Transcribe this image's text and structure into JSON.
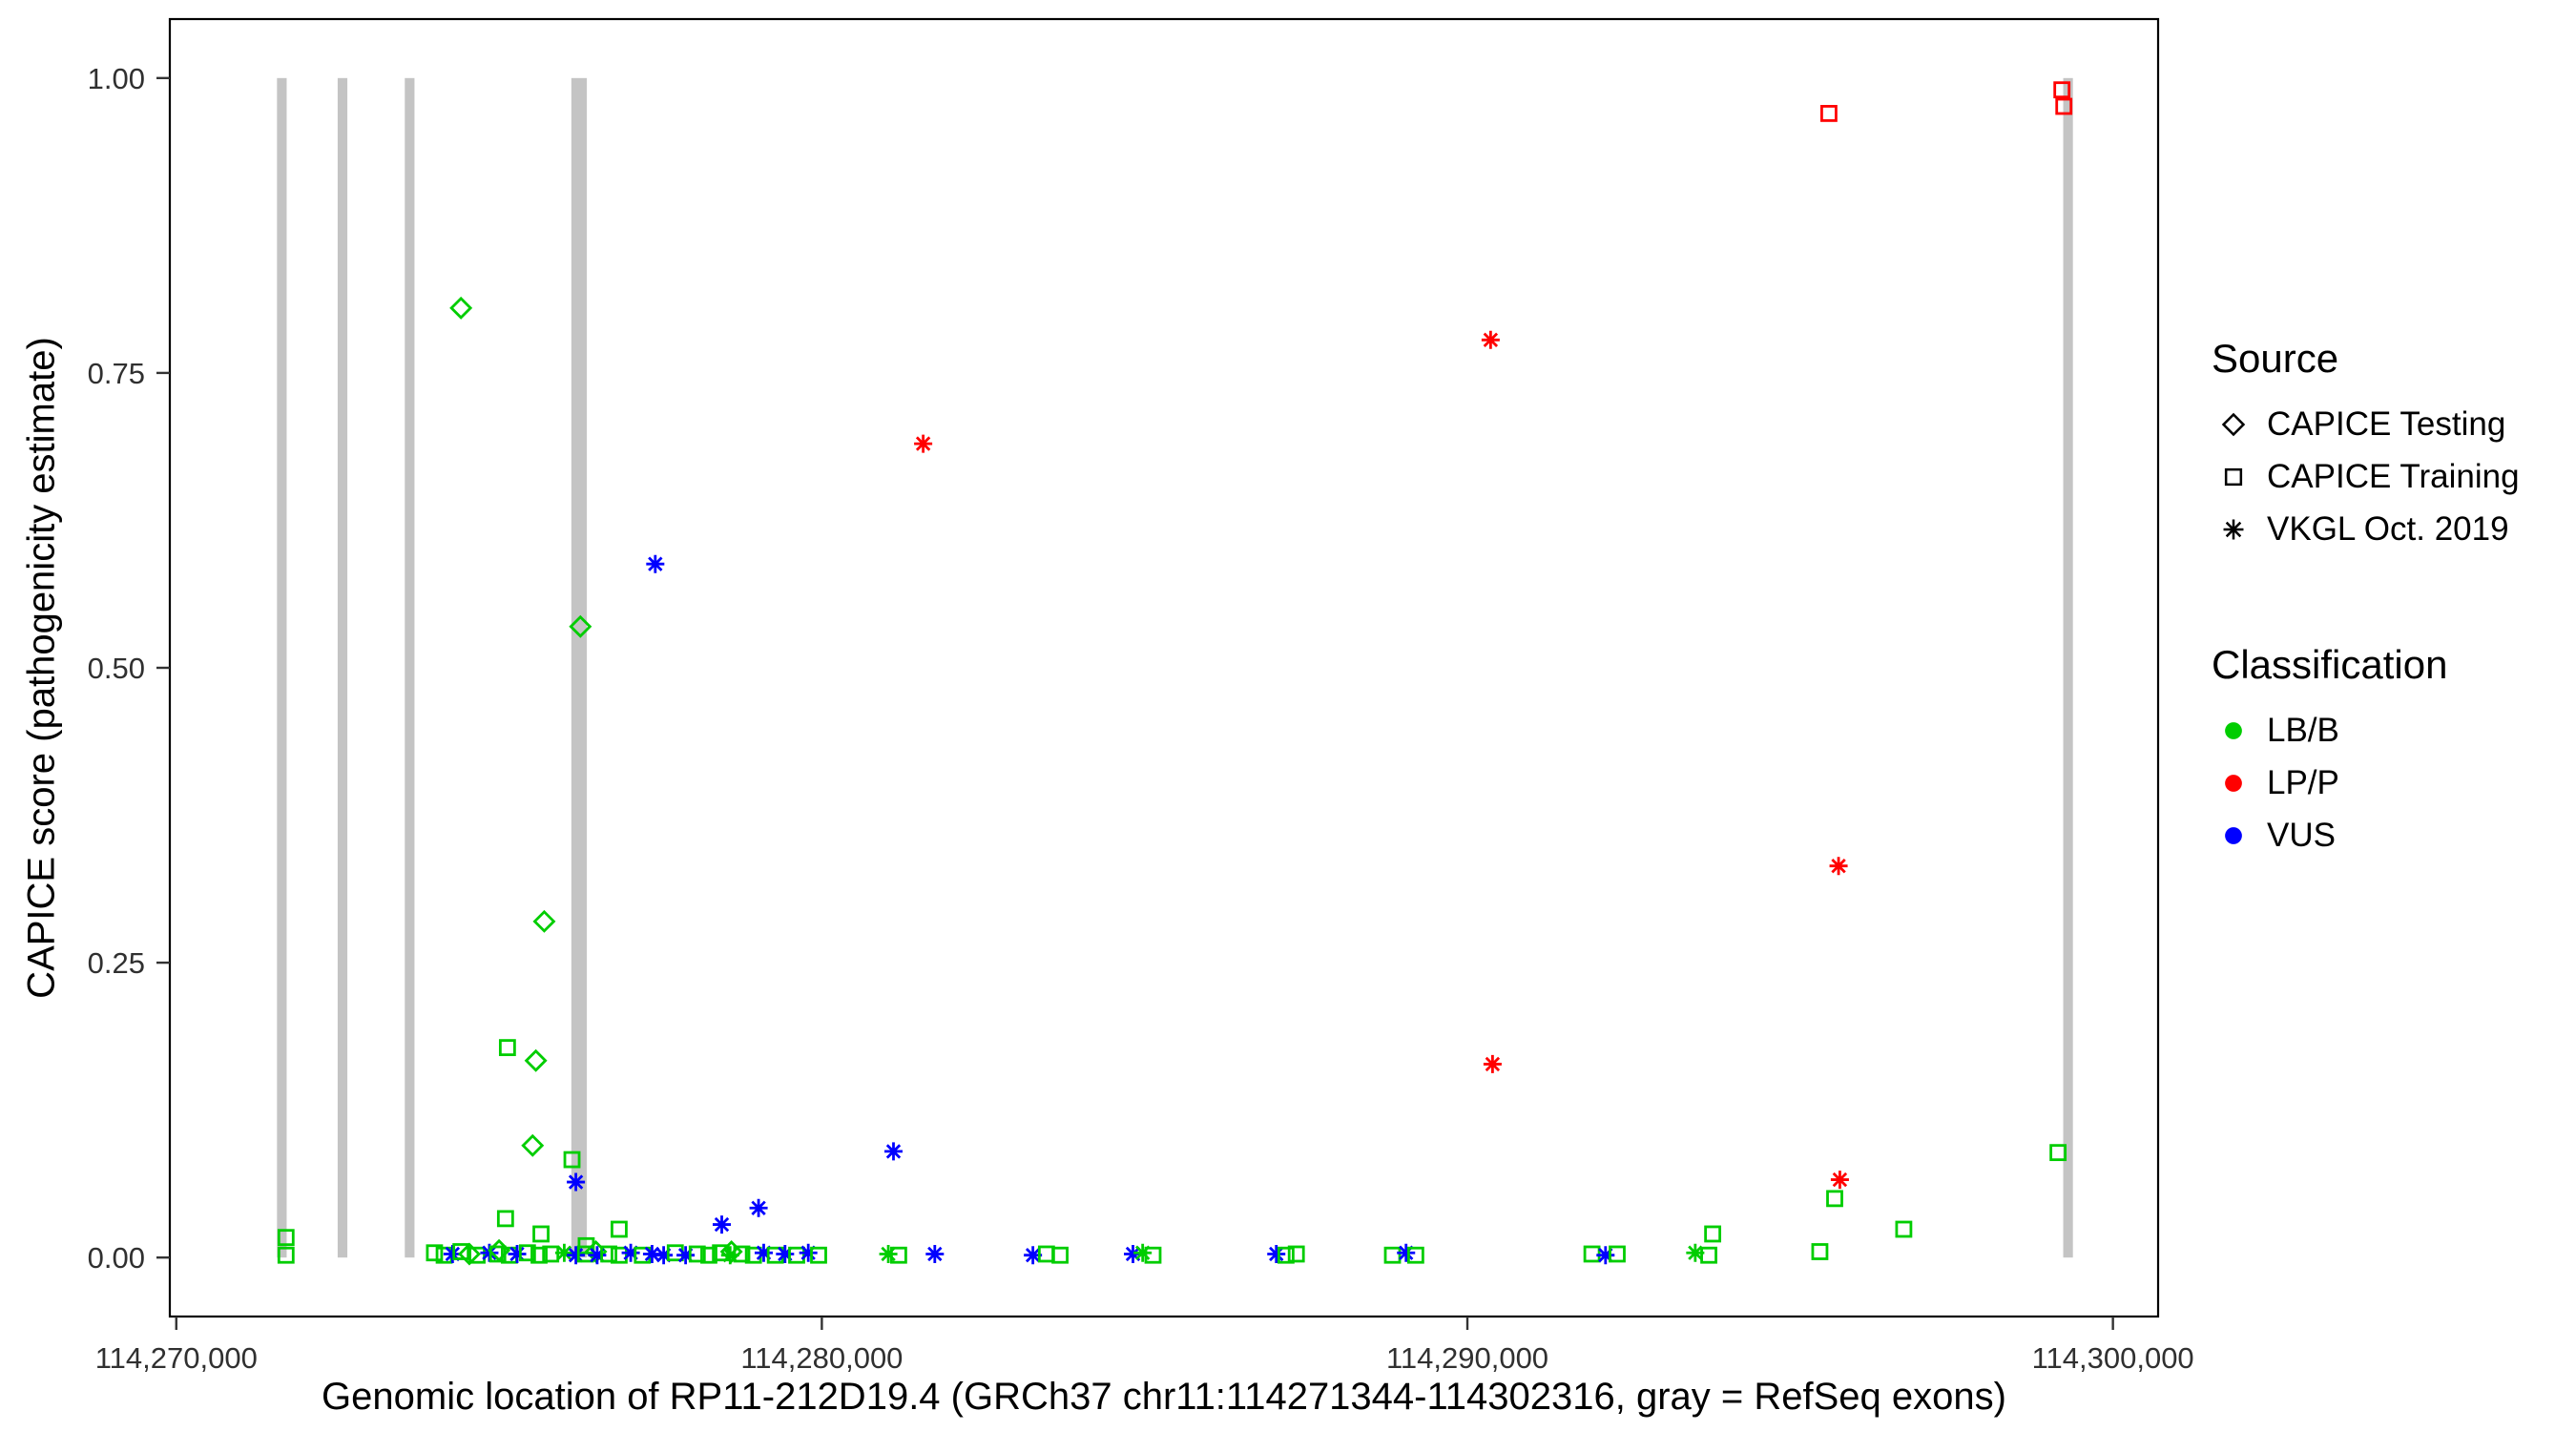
{
  "legend": {
    "source": {
      "title": "Source",
      "items": [
        {
          "label": "CAPICE Testing",
          "shape": "diamond"
        },
        {
          "label": "CAPICE Training",
          "shape": "square"
        },
        {
          "label": "VKGL Oct. 2019",
          "shape": "asterisk"
        }
      ]
    },
    "classification": {
      "title": "Classification",
      "items": [
        {
          "label": "LB/B",
          "color": "#00CD00"
        },
        {
          "label": "LP/P",
          "color": "#FF0000"
        },
        {
          "label": "VUS",
          "color": "#0000FF"
        }
      ]
    }
  },
  "chart_data": {
    "type": "scatter",
    "title": "",
    "xlabel": "Genomic location of RP11-212D19.4 (GRCh37 chr11:114271344-114302316, gray = RefSeq exons)",
    "ylabel": "CAPICE score (pathogenicity estimate)",
    "xlim": [
      114269900,
      114300700
    ],
    "ylim": [
      -0.05,
      1.05
    ],
    "grid": "off",
    "legend_position": "right",
    "x_ticks": [
      {
        "v": 114270000,
        "label": "114,270,000"
      },
      {
        "v": 114280000,
        "label": "114,280,000"
      },
      {
        "v": 114290000,
        "label": "114,290,000"
      },
      {
        "v": 114300000,
        "label": "114,300,000"
      }
    ],
    "y_ticks": [
      {
        "v": 0.0,
        "label": "0.00"
      },
      {
        "v": 0.25,
        "label": "0.25"
      },
      {
        "v": 0.5,
        "label": "0.50"
      },
      {
        "v": 0.75,
        "label": "0.75"
      },
      {
        "v": 1.0,
        "label": "1.00"
      }
    ],
    "exon_color": "#C4C4C4",
    "exon_y_range": [
      0.0,
      1.0
    ],
    "exons": [
      {
        "start": 114271560,
        "end": 114271710
      },
      {
        "start": 114272500,
        "end": 114272650
      },
      {
        "start": 114273540,
        "end": 114273690
      },
      {
        "start": 114276120,
        "end": 114276360
      },
      {
        "start": 114299230,
        "end": 114299380
      }
    ],
    "colors": {
      "LB/B": "#00CD00",
      "LP/P": "#FF0000",
      "VUS": "#0000FF"
    },
    "shapes_by_source": {
      "testing": "diamond",
      "training": "square",
      "vkgl": "asterisk"
    },
    "points": [
      {
        "x": 114295600,
        "y": 0.97,
        "s": "training",
        "c": "LP/P"
      },
      {
        "x": 114299210,
        "y": 0.99,
        "s": "training",
        "c": "LP/P"
      },
      {
        "x": 114299240,
        "y": 0.976,
        "s": "training",
        "c": "LP/P"
      },
      {
        "x": 114274410,
        "y": 0.805,
        "s": "testing",
        "c": "LB/B"
      },
      {
        "x": 114290360,
        "y": 0.778,
        "s": "vkgl",
        "c": "LP/P"
      },
      {
        "x": 114281570,
        "y": 0.69,
        "s": "vkgl",
        "c": "LP/P"
      },
      {
        "x": 114277420,
        "y": 0.588,
        "s": "vkgl",
        "c": "VUS"
      },
      {
        "x": 114276260,
        "y": 0.535,
        "s": "testing",
        "c": "LB/B"
      },
      {
        "x": 114295750,
        "y": 0.332,
        "s": "vkgl",
        "c": "LP/P"
      },
      {
        "x": 114275700,
        "y": 0.285,
        "s": "testing",
        "c": "LB/B"
      },
      {
        "x": 114275130,
        "y": 0.178,
        "s": "training",
        "c": "LB/B"
      },
      {
        "x": 114275570,
        "y": 0.167,
        "s": "testing",
        "c": "LB/B"
      },
      {
        "x": 114290390,
        "y": 0.164,
        "s": "vkgl",
        "c": "LP/P"
      },
      {
        "x": 114275520,
        "y": 0.095,
        "s": "testing",
        "c": "LB/B"
      },
      {
        "x": 114281110,
        "y": 0.09,
        "s": "vkgl",
        "c": "VUS"
      },
      {
        "x": 114299150,
        "y": 0.089,
        "s": "training",
        "c": "LB/B"
      },
      {
        "x": 114276130,
        "y": 0.083,
        "s": "training",
        "c": "LB/B"
      },
      {
        "x": 114295770,
        "y": 0.066,
        "s": "vkgl",
        "c": "LP/P"
      },
      {
        "x": 114276190,
        "y": 0.064,
        "s": "vkgl",
        "c": "VUS"
      },
      {
        "x": 114295690,
        "y": 0.05,
        "s": "training",
        "c": "LB/B"
      },
      {
        "x": 114279020,
        "y": 0.042,
        "s": "vkgl",
        "c": "VUS"
      },
      {
        "x": 114275100,
        "y": 0.033,
        "s": "training",
        "c": "LB/B"
      },
      {
        "x": 114278450,
        "y": 0.028,
        "s": "vkgl",
        "c": "VUS"
      },
      {
        "x": 114276860,
        "y": 0.024,
        "s": "training",
        "c": "LB/B"
      },
      {
        "x": 114296760,
        "y": 0.024,
        "s": "training",
        "c": "LB/B"
      },
      {
        "x": 114293800,
        "y": 0.02,
        "s": "training",
        "c": "LB/B"
      },
      {
        "x": 114271700,
        "y": 0.017,
        "s": "training",
        "c": "LB/B"
      },
      {
        "x": 114275650,
        "y": 0.02,
        "s": "training",
        "c": "LB/B"
      },
      {
        "x": 114271700,
        "y": 0.002,
        "s": "training",
        "c": "LB/B"
      },
      {
        "x": 114276350,
        "y": 0.01,
        "s": "training",
        "c": "LB/B"
      },
      {
        "x": 114274000,
        "y": 0.004,
        "s": "training",
        "c": "LB/B"
      },
      {
        "x": 114274150,
        "y": 0.002,
        "s": "training",
        "c": "LB/B"
      },
      {
        "x": 114274280,
        "y": 0.003,
        "s": "vkgl",
        "c": "VUS"
      },
      {
        "x": 114274410,
        "y": 0.005,
        "s": "training",
        "c": "LB/B"
      },
      {
        "x": 114274540,
        "y": 0.003,
        "s": "testing",
        "c": "LB/B"
      },
      {
        "x": 114274660,
        "y": 0.002,
        "s": "training",
        "c": "LB/B"
      },
      {
        "x": 114274850,
        "y": 0.004,
        "s": "vkgl",
        "c": "VUS"
      },
      {
        "x": 114274980,
        "y": 0.003,
        "s": "training",
        "c": "LB/B"
      },
      {
        "x": 114275000,
        "y": 0.006,
        "s": "testing",
        "c": "LB/B"
      },
      {
        "x": 114275160,
        "y": 0.002,
        "s": "training",
        "c": "LB/B"
      },
      {
        "x": 114275280,
        "y": 0.003,
        "s": "vkgl",
        "c": "VUS"
      },
      {
        "x": 114275440,
        "y": 0.004,
        "s": "training",
        "c": "LB/B"
      },
      {
        "x": 114275620,
        "y": 0.002,
        "s": "training",
        "c": "LB/B"
      },
      {
        "x": 114275800,
        "y": 0.003,
        "s": "training",
        "c": "LB/B"
      },
      {
        "x": 114276010,
        "y": 0.004,
        "s": "vkgl",
        "c": "LB/B"
      },
      {
        "x": 114276190,
        "y": 0.002,
        "s": "vkgl",
        "c": "VUS"
      },
      {
        "x": 114276340,
        "y": 0.003,
        "s": "training",
        "c": "LB/B"
      },
      {
        "x": 114276500,
        "y": 0.005,
        "s": "testing",
        "c": "LB/B"
      },
      {
        "x": 114276520,
        "y": 0.002,
        "s": "vkgl",
        "c": "VUS"
      },
      {
        "x": 114276700,
        "y": 0.003,
        "s": "training",
        "c": "LB/B"
      },
      {
        "x": 114276860,
        "y": 0.002,
        "s": "training",
        "c": "LB/B"
      },
      {
        "x": 114277040,
        "y": 0.004,
        "s": "vkgl",
        "c": "VUS"
      },
      {
        "x": 114277220,
        "y": 0.002,
        "s": "training",
        "c": "LB/B"
      },
      {
        "x": 114277370,
        "y": 0.003,
        "s": "vkgl",
        "c": "VUS"
      },
      {
        "x": 114277550,
        "y": 0.002,
        "s": "vkgl",
        "c": "VUS"
      },
      {
        "x": 114277730,
        "y": 0.004,
        "s": "training",
        "c": "LB/B"
      },
      {
        "x": 114277890,
        "y": 0.002,
        "s": "vkgl",
        "c": "VUS"
      },
      {
        "x": 114278070,
        "y": 0.003,
        "s": "training",
        "c": "LB/B"
      },
      {
        "x": 114278250,
        "y": 0.002,
        "s": "training",
        "c": "LB/B"
      },
      {
        "x": 114278430,
        "y": 0.004,
        "s": "training",
        "c": "LB/B"
      },
      {
        "x": 114278580,
        "y": 0.002,
        "s": "vkgl",
        "c": "LB/B"
      },
      {
        "x": 114278600,
        "y": 0.005,
        "s": "testing",
        "c": "LB/B"
      },
      {
        "x": 114278760,
        "y": 0.003,
        "s": "training",
        "c": "LB/B"
      },
      {
        "x": 114278940,
        "y": 0.002,
        "s": "training",
        "c": "LB/B"
      },
      {
        "x": 114279100,
        "y": 0.004,
        "s": "vkgl",
        "c": "VUS"
      },
      {
        "x": 114279280,
        "y": 0.002,
        "s": "training",
        "c": "LB/B"
      },
      {
        "x": 114279430,
        "y": 0.003,
        "s": "vkgl",
        "c": "VUS"
      },
      {
        "x": 114279610,
        "y": 0.002,
        "s": "training",
        "c": "LB/B"
      },
      {
        "x": 114279790,
        "y": 0.004,
        "s": "vkgl",
        "c": "VUS"
      },
      {
        "x": 114279950,
        "y": 0.002,
        "s": "training",
        "c": "LB/B"
      },
      {
        "x": 114281030,
        "y": 0.003,
        "s": "vkgl",
        "c": "LB/B"
      },
      {
        "x": 114281190,
        "y": 0.002,
        "s": "training",
        "c": "LB/B"
      },
      {
        "x": 114281750,
        "y": 0.003,
        "s": "vkgl",
        "c": "VUS"
      },
      {
        "x": 114283270,
        "y": 0.002,
        "s": "vkgl",
        "c": "VUS"
      },
      {
        "x": 114283480,
        "y": 0.003,
        "s": "training",
        "c": "LB/B"
      },
      {
        "x": 114283690,
        "y": 0.002,
        "s": "training",
        "c": "LB/B"
      },
      {
        "x": 114284820,
        "y": 0.003,
        "s": "vkgl",
        "c": "VUS"
      },
      {
        "x": 114284970,
        "y": 0.004,
        "s": "vkgl",
        "c": "LB/B"
      },
      {
        "x": 114285130,
        "y": 0.002,
        "s": "training",
        "c": "LB/B"
      },
      {
        "x": 114287040,
        "y": 0.003,
        "s": "vkgl",
        "c": "VUS"
      },
      {
        "x": 114287190,
        "y": 0.002,
        "s": "training",
        "c": "LB/B"
      },
      {
        "x": 114287350,
        "y": 0.003,
        "s": "training",
        "c": "LB/B"
      },
      {
        "x": 114288840,
        "y": 0.002,
        "s": "training",
        "c": "LB/B"
      },
      {
        "x": 114289050,
        "y": 0.004,
        "s": "vkgl",
        "c": "VUS"
      },
      {
        "x": 114289200,
        "y": 0.002,
        "s": "training",
        "c": "LB/B"
      },
      {
        "x": 114291930,
        "y": 0.003,
        "s": "training",
        "c": "LB/B"
      },
      {
        "x": 114292140,
        "y": 0.002,
        "s": "vkgl",
        "c": "VUS"
      },
      {
        "x": 114292320,
        "y": 0.003,
        "s": "training",
        "c": "LB/B"
      },
      {
        "x": 114293530,
        "y": 0.004,
        "s": "vkgl",
        "c": "LB/B"
      },
      {
        "x": 114293740,
        "y": 0.002,
        "s": "training",
        "c": "LB/B"
      },
      {
        "x": 114295460,
        "y": 0.005,
        "s": "training",
        "c": "LB/B"
      }
    ]
  }
}
